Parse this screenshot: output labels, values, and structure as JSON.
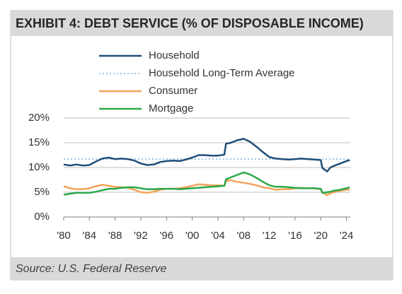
{
  "chart_data": {
    "type": "line",
    "title": "EXHIBIT 4: DEBT SERVICE (% OF DISPOSABLE INCOME)",
    "source": "Source: U.S. Federal Reserve",
    "x": [
      1980,
      1981,
      1982,
      1983,
      1984,
      1985,
      1986,
      1987,
      1988,
      1989,
      1990,
      1991,
      1992,
      1993,
      1994,
      1995,
      1996,
      1997,
      1998,
      1999,
      2000,
      2001,
      2002,
      2003,
      2004,
      2005,
      2005.25,
      2006,
      2007,
      2008,
      2009,
      2010,
      2011,
      2012,
      2013,
      2014,
      2015,
      2016,
      2017,
      2018,
      2019,
      2020,
      2020.25,
      2021,
      2021.5,
      2022,
      2023,
      2024,
      2024.5
    ],
    "series": [
      {
        "name": "Household",
        "color": "#1f4e79",
        "values": [
          10.6,
          10.4,
          10.6,
          10.4,
          10.5,
          11.2,
          11.8,
          12.0,
          11.7,
          11.8,
          11.7,
          11.4,
          10.8,
          10.5,
          10.6,
          11.1,
          11.3,
          11.4,
          11.3,
          11.6,
          12.0,
          12.5,
          12.5,
          12.4,
          12.4,
          12.6,
          14.8,
          15.0,
          15.5,
          15.8,
          15.2,
          14.2,
          13.1,
          12.1,
          11.8,
          11.7,
          11.6,
          11.7,
          11.8,
          11.7,
          11.6,
          11.5,
          9.9,
          9.2,
          10.0,
          10.3,
          10.8,
          11.3,
          11.5
        ]
      },
      {
        "name": "Household Long-Term Average",
        "color": "#9dc3e6",
        "style": "dotted",
        "x": [
          1980,
          2024.5
        ],
        "values": [
          11.7,
          11.7
        ]
      },
      {
        "name": "Consumer",
        "color": "#f4a259",
        "values": [
          6.2,
          5.8,
          5.6,
          5.6,
          5.8,
          6.2,
          6.5,
          6.3,
          6.1,
          6.0,
          5.9,
          5.5,
          5.0,
          4.9,
          5.1,
          5.5,
          5.7,
          5.7,
          5.8,
          6.0,
          6.3,
          6.6,
          6.5,
          6.4,
          6.4,
          6.3,
          7.3,
          7.4,
          7.1,
          6.9,
          6.7,
          6.4,
          6.0,
          5.8,
          5.5,
          5.6,
          5.6,
          5.8,
          5.9,
          5.8,
          5.8,
          5.6,
          5.0,
          4.4,
          4.8,
          5.0,
          5.3,
          5.5,
          5.5
        ]
      },
      {
        "name": "Mortgage",
        "color": "#2ca84a",
        "values": [
          4.5,
          4.7,
          4.9,
          4.9,
          4.9,
          5.1,
          5.4,
          5.7,
          5.7,
          5.9,
          6.0,
          6.0,
          5.8,
          5.6,
          5.6,
          5.7,
          5.7,
          5.7,
          5.6,
          5.7,
          5.8,
          5.9,
          6.0,
          6.1,
          6.2,
          6.3,
          7.6,
          8.0,
          8.5,
          9.0,
          8.6,
          7.9,
          7.1,
          6.4,
          6.1,
          6.1,
          6.0,
          5.9,
          5.8,
          5.8,
          5.8,
          5.7,
          4.9,
          5.0,
          5.1,
          5.3,
          5.5,
          5.8,
          6.0
        ]
      }
    ],
    "xlim": [
      1980,
      2024.6
    ],
    "xticks": [
      {
        "value": 1980,
        "label": "'80"
      },
      {
        "value": 1984,
        "label": "'84"
      },
      {
        "value": 1988,
        "label": "'88"
      },
      {
        "value": 1992,
        "label": "'92"
      },
      {
        "value": 1996,
        "label": "'96"
      },
      {
        "value": 2000,
        "label": "'00"
      },
      {
        "value": 2004,
        "label": "'04"
      },
      {
        "value": 2008,
        "label": "'08"
      },
      {
        "value": 2012,
        "label": "'12"
      },
      {
        "value": 2016,
        "label": "'16"
      },
      {
        "value": 2020,
        "label": "'20"
      },
      {
        "value": 2024,
        "label": "'24"
      }
    ],
    "ylim": [
      0,
      20
    ],
    "yticks": [
      {
        "value": 0,
        "label": "0%"
      },
      {
        "value": 5,
        "label": "5%"
      },
      {
        "value": 10,
        "label": "10%"
      },
      {
        "value": 15,
        "label": "15%"
      },
      {
        "value": 20,
        "label": "20%"
      }
    ],
    "grid": true
  }
}
